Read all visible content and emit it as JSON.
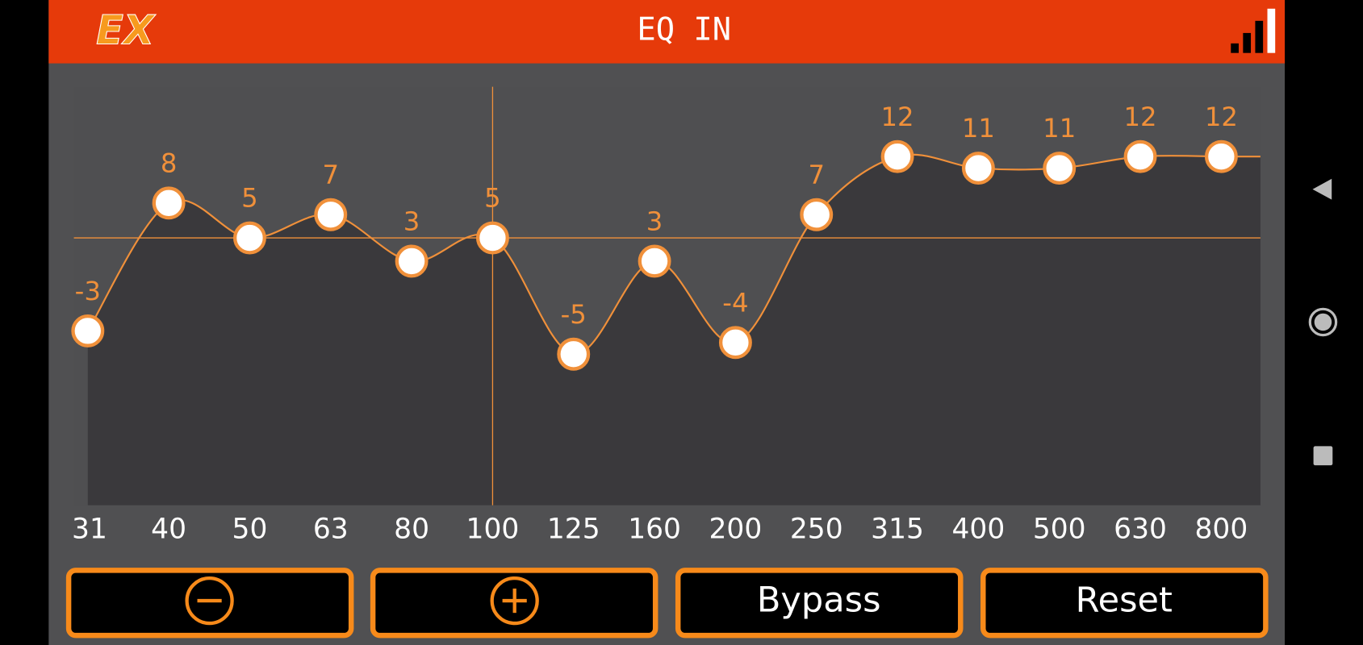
{
  "header": {
    "logo": "EX",
    "title": "EQ IN"
  },
  "chart_data": {
    "type": "line",
    "categories": [
      "31",
      "40",
      "50",
      "63",
      "80",
      "100",
      "125",
      "160",
      "200",
      "250",
      "315",
      "400",
      "500",
      "630",
      "800"
    ],
    "values": [
      -3,
      8,
      5,
      7,
      3,
      5,
      -5,
      3,
      -4,
      7,
      12,
      11,
      11,
      12,
      12
    ],
    "ylim": [
      -18,
      18
    ],
    "color": "#f0903a",
    "selected": 5
  },
  "buttons": {
    "bypass": "Bypass",
    "reset": "Reset"
  }
}
